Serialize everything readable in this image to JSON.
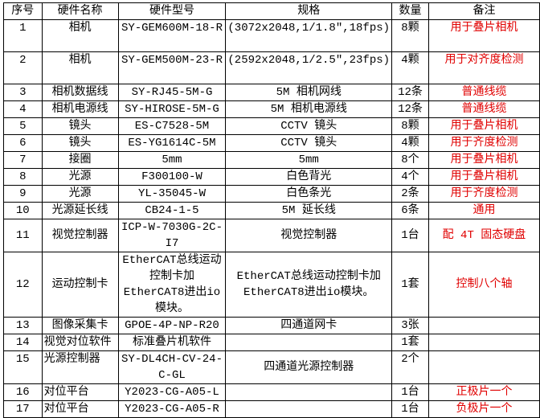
{
  "headers": [
    "序号",
    "硬件名称",
    "硬件型号",
    "规格",
    "数量",
    "备注"
  ],
  "rows": [
    {
      "no": "1",
      "name": "相机",
      "model": "SY-GEM600M-18-R",
      "spec": "(3072x2048,1/1.8\",18fps)",
      "qty": "8颗",
      "note": "用于叠片相机"
    },
    {
      "no": "2",
      "name": "相机",
      "model": "SY-GEM500M-23-R",
      "spec": "(2592x2048,1/2.5\",23fps)",
      "qty": "4颗",
      "note": "用于对齐度检测"
    },
    {
      "no": "3",
      "name": "相机数据线",
      "model": "SY-RJ45-5M-G",
      "spec": "5M 相机网线",
      "qty": "12条",
      "note": "普通线缆"
    },
    {
      "no": "4",
      "name": "相机电源线",
      "model": "SY-HIROSE-5M-G",
      "spec": "5M 相机电源线",
      "qty": "12条",
      "note": "普通线缆"
    },
    {
      "no": "5",
      "name": "镜头",
      "model": "ES-C7528-5M",
      "spec": "CCTV 镜头",
      "qty": "8颗",
      "note": "用于叠片相机"
    },
    {
      "no": "6",
      "name": "镜头",
      "model": "ES-YG1614C-5M",
      "spec": "CCTV 镜头",
      "qty": "4颗",
      "note": "用于齐度检测"
    },
    {
      "no": "7",
      "name": "接圈",
      "model": "5mm",
      "spec": "5mm",
      "qty": "8个",
      "note": "用于叠片相机"
    },
    {
      "no": "8",
      "name": "光源",
      "model": "F300100-W",
      "spec": "白色背光",
      "qty": "4个",
      "note": "用于叠片相机"
    },
    {
      "no": "9",
      "name": "光源",
      "model": "YL-35045-W",
      "spec": "白色条光",
      "qty": "2条",
      "note": "用于齐度检测"
    },
    {
      "no": "10",
      "name": "光源延长线",
      "model": "CB24-1-5",
      "spec": "5M 延长线",
      "qty": "6条",
      "note": "通用"
    },
    {
      "no": "11",
      "name": "视觉控制器",
      "model": "ICP-W-7030G-2C-I7",
      "spec": "视觉控制器",
      "qty": "1台",
      "note": "配 4T 固态硬盘"
    },
    {
      "no": "12",
      "name": "运动控制卡",
      "model": "EtherCAT总线运动控制卡加EtherCAT8进出io模块。",
      "spec": "EtherCAT总线运动控制卡加EtherCAT8进出io模块。",
      "qty": "1套",
      "note": "控制八个轴"
    },
    {
      "no": "13",
      "name": "图像采集卡",
      "model": "GPOE-4P-NP-R20",
      "spec": "四通道网卡",
      "qty": "3张",
      "note": ""
    },
    {
      "no": "14",
      "name": "视觉对位软件",
      "model": "标准叠片机软件",
      "spec": "",
      "qty": "1套",
      "note": ""
    },
    {
      "no": "15",
      "name": "光源控制器",
      "model": "SY-DL4CH-CV-24-C-GL",
      "spec": "四通道光源控制器",
      "qty": "2个",
      "note": ""
    },
    {
      "no": "16",
      "name": "对位平台",
      "model": "Y2023-CG-A05-L",
      "spec": "",
      "qty": "1台",
      "note": "正极片一个"
    },
    {
      "no": "17",
      "name": "对位平台",
      "model": "Y2023-CG-A05-R",
      "spec": "",
      "qty": "1台",
      "note": "负极片一个"
    }
  ],
  "colors": {
    "note_text": "#e00000",
    "border": "#000000"
  }
}
